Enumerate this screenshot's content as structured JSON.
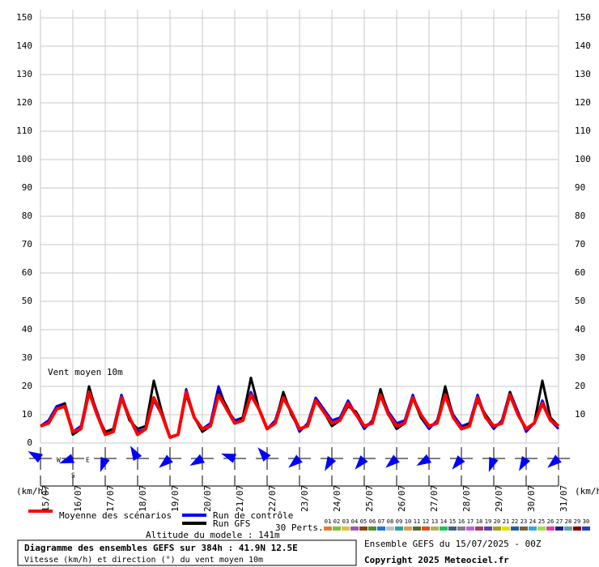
{
  "chart_data": {
    "type": "line",
    "annotation": "Vent moyen 10m",
    "y_unit_label": "(km/h)",
    "x": [
      0,
      6,
      12,
      18,
      24,
      30,
      36,
      42,
      48,
      54,
      60,
      66,
      72,
      78,
      84,
      90,
      96,
      102,
      108,
      114,
      120,
      126,
      132,
      138,
      144,
      150,
      156,
      162,
      168,
      174,
      180,
      186,
      192,
      198,
      204,
      210,
      216,
      222,
      228,
      234,
      240,
      246,
      252,
      258,
      264,
      270,
      276,
      282,
      288,
      294,
      300,
      306,
      312,
      318,
      324,
      330,
      336,
      342,
      348,
      354,
      360,
      366,
      372,
      378,
      384
    ],
    "xlim": [
      0,
      384
    ],
    "xticks": [
      {
        "value": 0,
        "label": "15/07"
      },
      {
        "value": 24,
        "label": "16/07"
      },
      {
        "value": 48,
        "label": "17/07"
      },
      {
        "value": 72,
        "label": "18/07"
      },
      {
        "value": 96,
        "label": "19/07"
      },
      {
        "value": 120,
        "label": "20/07"
      },
      {
        "value": 144,
        "label": "21/07"
      },
      {
        "value": 168,
        "label": "22/07"
      },
      {
        "value": 192,
        "label": "23/07"
      },
      {
        "value": 216,
        "label": "24/07"
      },
      {
        "value": 240,
        "label": "25/07"
      },
      {
        "value": 264,
        "label": "26/07"
      },
      {
        "value": 288,
        "label": "27/07"
      },
      {
        "value": 312,
        "label": "28/07"
      },
      {
        "value": 336,
        "label": "29/07"
      },
      {
        "value": 360,
        "label": "30/07"
      },
      {
        "value": 384,
        "label": "31/07"
      }
    ],
    "ylim": [
      0,
      150
    ],
    "yticks": [
      0,
      10,
      20,
      30,
      40,
      50,
      60,
      70,
      80,
      90,
      100,
      110,
      120,
      130,
      140,
      150
    ],
    "grid": true,
    "series": [
      {
        "name": "Run de contrôle",
        "color": "#0000ff",
        "width": 3,
        "values": [
          6,
          8,
          13,
          14,
          4,
          6,
          19,
          11,
          3,
          5,
          17,
          9,
          4,
          5,
          15,
          10,
          2,
          3,
          19,
          9,
          5,
          7,
          20,
          12,
          8,
          9,
          18,
          12,
          5,
          8,
          17,
          11,
          4,
          7,
          16,
          12,
          8,
          9,
          15,
          10,
          5,
          8,
          18,
          11,
          7,
          8,
          17,
          9,
          5,
          8,
          18,
          10,
          6,
          7,
          17,
          9,
          5,
          8,
          18,
          11,
          4,
          7,
          15,
          8,
          5
        ]
      },
      {
        "name": "Run GFS",
        "color": "#000000",
        "width": 3,
        "values": [
          6,
          7,
          12,
          14,
          3,
          5,
          20,
          10,
          4,
          5,
          16,
          8,
          5,
          6,
          22,
          11,
          2,
          3,
          17,
          9,
          4,
          6,
          18,
          13,
          7,
          9,
          23,
          12,
          5,
          7,
          18,
          10,
          5,
          6,
          15,
          11,
          6,
          8,
          13,
          11,
          6,
          7,
          19,
          10,
          5,
          7,
          16,
          9,
          6,
          7,
          20,
          9,
          5,
          7,
          15,
          10,
          6,
          7,
          18,
          10,
          5,
          7,
          22,
          9,
          6
        ]
      },
      {
        "name": "Moyenne des scénarios",
        "color": "#ff0000",
        "width": 4,
        "values": [
          6,
          7,
          12,
          13,
          4,
          5,
          18,
          10,
          3,
          4,
          16,
          9,
          3,
          5,
          16,
          10,
          2,
          3,
          18,
          9,
          5,
          6,
          17,
          12,
          7,
          8,
          17,
          12,
          5,
          7,
          16,
          11,
          5,
          6,
          15,
          11,
          7,
          8,
          14,
          10,
          6,
          7,
          17,
          10,
          6,
          7,
          16,
          10,
          6,
          7,
          17,
          9,
          5,
          6,
          16,
          9,
          6,
          7,
          17,
          10,
          5,
          7,
          14,
          8,
          6
        ]
      }
    ],
    "wind_direction": [
      300,
      250,
      200,
      330,
      230,
      240,
      290,
      320,
      230,
      210,
      220,
      230,
      240,
      220,
      200,
      210,
      230
    ],
    "perturbations_label": "30 Perts.",
    "perturbations": [
      {
        "name": "01",
        "color": "#e07b39"
      },
      {
        "name": "02",
        "color": "#7fbf3f"
      },
      {
        "name": "03",
        "color": "#e0c040"
      },
      {
        "name": "04",
        "color": "#9b59b6"
      },
      {
        "name": "05",
        "color": "#8b4513"
      },
      {
        "name": "06",
        "color": "#4f8f2f"
      },
      {
        "name": "07",
        "color": "#1f77d4"
      },
      {
        "name": "08",
        "color": "#c0c0c0"
      },
      {
        "name": "09",
        "color": "#2fa0a0"
      },
      {
        "name": "10",
        "color": "#d4a050"
      },
      {
        "name": "11",
        "color": "#556b2f"
      },
      {
        "name": "12",
        "color": "#e05020"
      },
      {
        "name": "13",
        "color": "#b0b060"
      },
      {
        "name": "14",
        "color": "#20c060"
      },
      {
        "name": "15",
        "color": "#406080"
      },
      {
        "name": "16",
        "color": "#808080"
      },
      {
        "name": "17",
        "color": "#c060e0"
      },
      {
        "name": "18",
        "color": "#a04060"
      },
      {
        "name": "19",
        "color": "#6040a0"
      },
      {
        "name": "20",
        "color": "#a0a020"
      },
      {
        "name": "21",
        "color": "#e0e000"
      },
      {
        "name": "22",
        "color": "#2060a0"
      },
      {
        "name": "23",
        "color": "#806040"
      },
      {
        "name": "24",
        "color": "#40a0e0"
      },
      {
        "name": "25",
        "color": "#a0e040"
      },
      {
        "name": "26",
        "color": "#e040a0"
      },
      {
        "name": "27",
        "color": "#202080"
      },
      {
        "name": "28",
        "color": "#60a0a0"
      },
      {
        "name": "29",
        "color": "#800000"
      },
      {
        "name": "30",
        "color": "#2040c0"
      }
    ],
    "altitude": "Altitude du modele : 141m",
    "title": "Diagramme des ensembles GEFS sur 384h : 41.9N 12.5E",
    "subtitle": "Vitesse (km/h) et direction (°) du vent moyen 10m",
    "run_info": "Ensemble GEFS du 15/07/2025 - 00Z",
    "copyright": "Copyright 2025 Meteociel.fr",
    "compass": [
      "W",
      "E",
      "S"
    ]
  }
}
